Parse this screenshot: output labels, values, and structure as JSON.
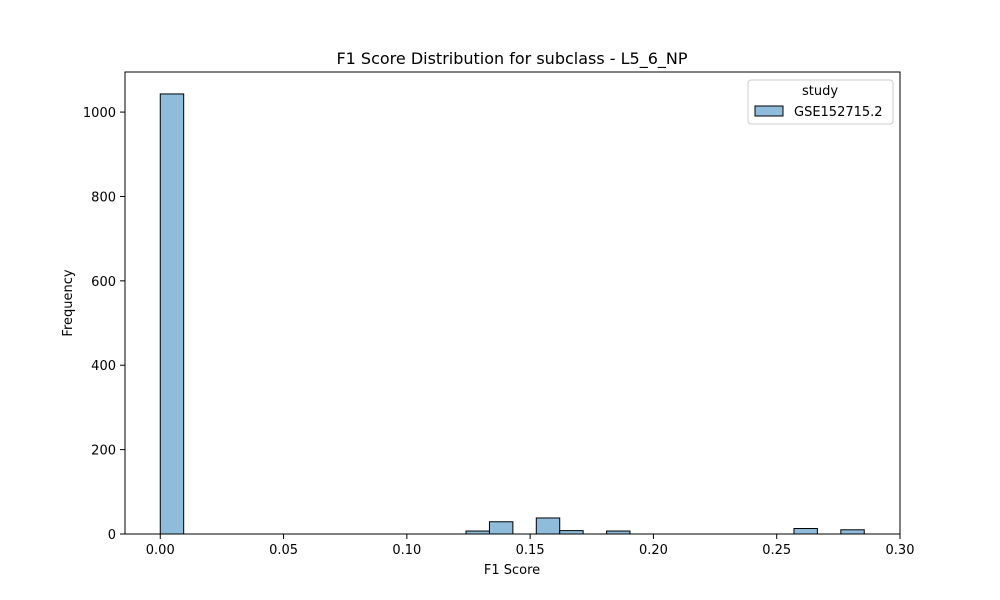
{
  "chart_data": {
    "type": "bar",
    "subtype": "histogram",
    "title": "F1 Score Distribution for subclass - L5_6_NP",
    "xlabel": "F1 Score",
    "ylabel": "Frequency",
    "xlim": [
      -0.0143,
      0.3
    ],
    "ylim": [
      0,
      1095
    ],
    "xticks": [
      0.0,
      0.05,
      0.1,
      0.15,
      0.2,
      0.25,
      0.3
    ],
    "xtick_labels": [
      "0.00",
      "0.05",
      "0.10",
      "0.15",
      "0.20",
      "0.25",
      "0.30"
    ],
    "yticks": [
      0,
      200,
      400,
      600,
      800,
      1000
    ],
    "ytick_labels": [
      "0",
      "200",
      "400",
      "600",
      "800",
      "1000"
    ],
    "grid": false,
    "legend": {
      "title": "study",
      "placement": "top-right",
      "entries": [
        "GSE152715.2"
      ]
    },
    "series": [
      {
        "name": "GSE152715.2",
        "color": "#8fbcdb",
        "edgecolor": "#000000",
        "bins": [
          {
            "x0": 0.0,
            "x1": 0.0095,
            "count": 1043
          },
          {
            "x0": 0.124,
            "x1": 0.1335,
            "count": 7
          },
          {
            "x0": 0.1335,
            "x1": 0.143,
            "count": 29
          },
          {
            "x0": 0.1525,
            "x1": 0.162,
            "count": 38
          },
          {
            "x0": 0.162,
            "x1": 0.1715,
            "count": 8
          },
          {
            "x0": 0.181,
            "x1": 0.1905,
            "count": 7
          },
          {
            "x0": 0.257,
            "x1": 0.2665,
            "count": 13
          },
          {
            "x0": 0.276,
            "x1": 0.2855,
            "count": 10
          }
        ]
      }
    ]
  }
}
